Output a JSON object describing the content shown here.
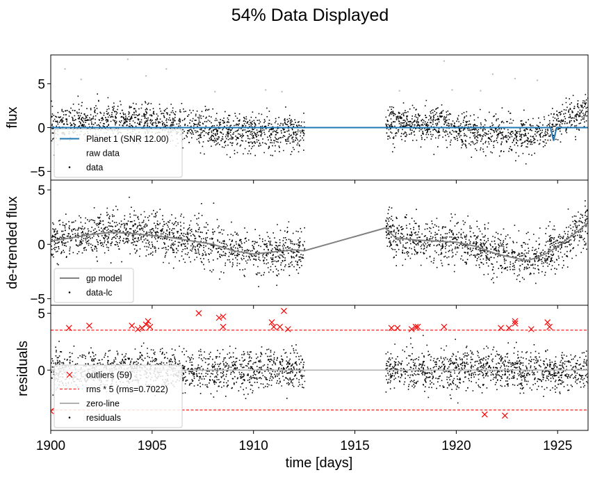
{
  "figure": {
    "title": "54% Data Displayed",
    "xlabel": "time [days]"
  },
  "colors": {
    "data": "#000000",
    "raw": "#bdbdbd",
    "planet_model": "#1f77b4",
    "gp_model": "#808080",
    "outliers": "#ff0000",
    "zero_line": "#b0b0b0"
  },
  "chart_data": [
    {
      "type": "scatter",
      "panel": "flux",
      "ylabel": "flux",
      "xlim": [
        1900,
        1926.5
      ],
      "ylim": [
        -6,
        8.3
      ],
      "yticks": [
        -5,
        0,
        5
      ],
      "ytick_labels": [
        "−5",
        "0",
        "5"
      ],
      "legend_position": "lower-left",
      "segments": [
        [
          1900,
          1912.5
        ],
        [
          1916.5,
          1926.5
        ]
      ],
      "scatter_sd": 1.0,
      "series": [
        {
          "name": "Planet 1 (SNR 12.00)",
          "kind": "line",
          "value": 0,
          "transit": {
            "t0": 1924.8,
            "depth": -1.5,
            "duration": 0.15
          }
        },
        {
          "name": "raw data",
          "kind": "points",
          "note": "gray outliers"
        },
        {
          "name": "data",
          "kind": "points"
        }
      ],
      "raw_points": [
        {
          "x": 1900.7,
          "y": 6.7
        },
        {
          "x": 1901.5,
          "y": 5.5
        },
        {
          "x": 1903.8,
          "y": 7.8
        },
        {
          "x": 1904.7,
          "y": 5.9
        },
        {
          "x": 1905.7,
          "y": 6.7
        },
        {
          "x": 1908.1,
          "y": 4.1
        },
        {
          "x": 1910.6,
          "y": 4.3
        },
        {
          "x": 1911.4,
          "y": 4.1
        },
        {
          "x": 1917.2,
          "y": 4.2
        },
        {
          "x": 1919.4,
          "y": 7.6
        },
        {
          "x": 1921.8,
          "y": 6.1
        },
        {
          "x": 1922.9,
          "y": 5.6
        },
        {
          "x": 1924.0,
          "y": 5.4
        },
        {
          "x": 1919.8,
          "y": 4.3
        },
        {
          "x": 1921.2,
          "y": 4.2
        }
      ]
    },
    {
      "type": "scatter",
      "panel": "detrended",
      "ylabel": "de-trended flux",
      "xlim": [
        1900,
        1926.5
      ],
      "ylim": [
        -5.6,
        5.9
      ],
      "yticks": [
        -5,
        0,
        5
      ],
      "ytick_labels": [
        "−5",
        "0",
        "5"
      ],
      "legend_position": "lower-left",
      "segments": [
        [
          1900,
          1912.5
        ],
        [
          1916.5,
          1926.5
        ]
      ],
      "scatter_sd": 1.0,
      "series": [
        {
          "name": "gp model",
          "kind": "line"
        },
        {
          "name": "data-lc",
          "kind": "points"
        }
      ],
      "gp_model": {
        "x": [
          1900,
          1901,
          1902,
          1903,
          1904,
          1905,
          1906,
          1907,
          1908,
          1909,
          1910,
          1911,
          1912,
          1912.5,
          1916.5,
          1917,
          1918,
          1919,
          1920,
          1921,
          1922,
          1923,
          1923.5,
          1924,
          1924.5,
          1925,
          1925.5,
          1926,
          1926.5
        ],
        "y": [
          0.3,
          0.6,
          0.9,
          1.1,
          1.0,
          0.8,
          0.6,
          0.3,
          0.0,
          -0.6,
          -0.9,
          -0.7,
          -0.5,
          -0.6,
          1.5,
          0.6,
          0.4,
          0.3,
          0.2,
          -0.2,
          -0.9,
          -1.3,
          -1.5,
          -1.2,
          -0.8,
          -0.2,
          0.5,
          1.2,
          2.0
        ]
      }
    },
    {
      "type": "scatter",
      "panel": "residuals",
      "ylabel": "residuals",
      "xlim": [
        1900,
        1926.5
      ],
      "ylim": [
        -5.3,
        5.7
      ],
      "yticks": [
        0,
        5
      ],
      "ytick_labels": [
        "0",
        "5"
      ],
      "xticks": [
        1900,
        1905,
        1910,
        1915,
        1920,
        1925
      ],
      "xtick_labels": [
        "1900",
        "1905",
        "1910",
        "1915",
        "1920",
        "1925"
      ],
      "legend_position": "lower-left",
      "segments": [
        [
          1900,
          1912.5
        ],
        [
          1916.5,
          1926.5
        ]
      ],
      "scatter_sd": 0.85,
      "rms": 0.7022,
      "series": [
        {
          "name": "outliers (59)",
          "kind": "x-markers"
        },
        {
          "name": "rms * 5 (rms=0.7022)",
          "kind": "dashed-lines",
          "values": [
            3.511,
            -3.511
          ]
        },
        {
          "name": "zero-line",
          "kind": "line",
          "value": 0
        },
        {
          "name": "residuals",
          "kind": "points"
        }
      ],
      "outliers": [
        {
          "x": 1900.9,
          "y": 3.7
        },
        {
          "x": 1901.9,
          "y": 3.9
        },
        {
          "x": 1904.0,
          "y": 3.9
        },
        {
          "x": 1904.3,
          "y": 3.6
        },
        {
          "x": 1904.5,
          "y": 3.7
        },
        {
          "x": 1904.7,
          "y": 4.0
        },
        {
          "x": 1904.8,
          "y": 4.3
        },
        {
          "x": 1904.9,
          "y": 3.8
        },
        {
          "x": 1907.3,
          "y": 5.0
        },
        {
          "x": 1908.3,
          "y": 4.6
        },
        {
          "x": 1908.5,
          "y": 4.7
        },
        {
          "x": 1908.5,
          "y": 3.8
        },
        {
          "x": 1910.9,
          "y": 4.2
        },
        {
          "x": 1911.0,
          "y": 3.8
        },
        {
          "x": 1911.3,
          "y": 3.8
        },
        {
          "x": 1911.5,
          "y": 5.2
        },
        {
          "x": 1911.7,
          "y": 3.6
        },
        {
          "x": 1916.8,
          "y": 3.7
        },
        {
          "x": 1917.1,
          "y": 3.7
        },
        {
          "x": 1917.8,
          "y": 3.6
        },
        {
          "x": 1918.0,
          "y": 3.8
        },
        {
          "x": 1918.1,
          "y": 3.8
        },
        {
          "x": 1919.4,
          "y": 3.8
        },
        {
          "x": 1921.4,
          "y": -3.9
        },
        {
          "x": 1922.2,
          "y": 3.7
        },
        {
          "x": 1922.4,
          "y": -4.0
        },
        {
          "x": 1922.6,
          "y": 3.7
        },
        {
          "x": 1922.9,
          "y": 4.1
        },
        {
          "x": 1922.9,
          "y": 4.3
        },
        {
          "x": 1923.7,
          "y": 3.6
        },
        {
          "x": 1924.5,
          "y": 4.2
        },
        {
          "x": 1924.6,
          "y": 3.8
        },
        {
          "x": 1900.0,
          "y": -3.6
        }
      ]
    }
  ]
}
